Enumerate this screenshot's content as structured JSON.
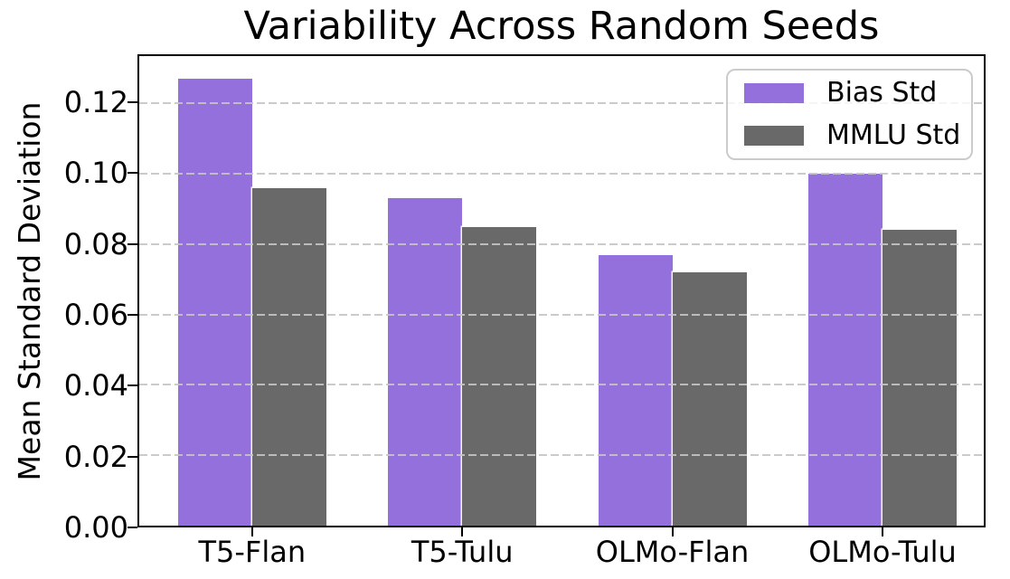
{
  "chart_data": {
    "type": "bar",
    "title": "Variability Across Random Seeds",
    "xlabel": "",
    "ylabel": "Mean Standard Deviation",
    "categories": [
      "T5-Flan",
      "T5-Tulu",
      "OLMo-Flan",
      "OLMo-Tulu"
    ],
    "series": [
      {
        "name": "Bias Std",
        "color": "#9370DB",
        "values": [
          0.127,
          0.093,
          0.077,
          0.1
        ]
      },
      {
        "name": "MMLU Std",
        "color": "#696969",
        "values": [
          0.096,
          0.085,
          0.072,
          0.084
        ]
      }
    ],
    "ylim": [
      0,
      0.1335
    ],
    "yticks": [
      0.0,
      0.02,
      0.04,
      0.06,
      0.08,
      0.1,
      0.12
    ],
    "ytick_labels": [
      "0.00",
      "0.02",
      "0.04",
      "0.06",
      "0.08",
      "0.10",
      "0.12"
    ],
    "grid": "horizontal-dashed-over-bars",
    "gridline_color": "#c5c5c5",
    "legend_position": "upper-right",
    "bar_width_fraction": 0.0878,
    "group_center_fractions": [
      0.1336,
      0.3824,
      0.6312,
      0.8801
    ]
  }
}
